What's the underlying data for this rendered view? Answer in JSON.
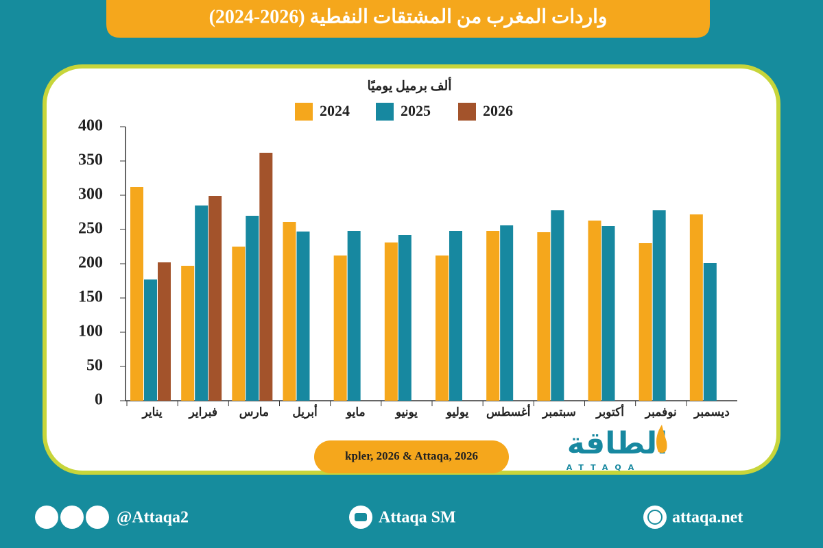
{
  "chart_data": {
    "type": "bar",
    "title": "واردات المغرب من المشتقات النفطية (2026-2024)",
    "subtitle": "ألف برميل يوميًا",
    "categories": [
      "يناير",
      "فبراير",
      "مارس",
      "أبريل",
      "مايو",
      "يونيو",
      "يوليو",
      "أغسطس",
      "سبتمبر",
      "أكتوبر",
      "نوفمبر",
      "ديسمبر"
    ],
    "series": [
      {
        "name": "2024",
        "color": "#f5a71c",
        "values": [
          312,
          197,
          225,
          261,
          212,
          231,
          212,
          248,
          246,
          263,
          230,
          272
        ]
      },
      {
        "name": "2025",
        "color": "#1788a0",
        "values": [
          177,
          285,
          270,
          247,
          248,
          242,
          248,
          256,
          278,
          255,
          278,
          201
        ]
      },
      {
        "name": "2026",
        "color": "#a3532b",
        "values": [
          202,
          299,
          362,
          null,
          null,
          null,
          null,
          null,
          null,
          null,
          null,
          null
        ]
      }
    ],
    "ylim": [
      0,
      400
    ],
    "yticks": [
      0,
      50,
      100,
      150,
      200,
      250,
      300,
      350,
      400
    ],
    "source": "kpler, 2026 & Attaqa, 2026"
  },
  "logo": {
    "arabic": "الطاقة",
    "latin": "ATTAQA"
  },
  "footer": {
    "social": "@Attaqa2",
    "youtube": "Attaqa SM",
    "website": "attaqa.net"
  }
}
